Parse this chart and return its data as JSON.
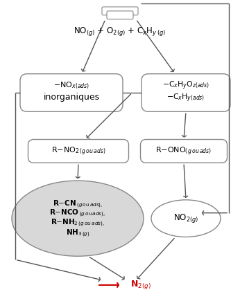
{
  "bg": "#ffffff",
  "ec": "#888888",
  "ac": "#555555",
  "rc": "#cc0000",
  "ef": "#d8d8d8",
  "bf": "#ffffff",
  "figw": 3.46,
  "figh": 4.22,
  "dpi": 100,
  "top_text": "NO$_{(g)}$ + O$_{2(g)}$ + C$_x$H$_{y\\,(g)}$",
  "b1_text1": "$-$NO$_{x(ads)}$",
  "b1_text2": "inorganiques",
  "b2_text1": "$-$C$_x$H$_y$O$_{z(ads)}$",
  "b2_text2": "$-$C$_x$H$_{y(ads)}$",
  "b3_text": "R$-$NO$_{2\\,(g\\,ou\\,ads)}$",
  "b4_text": "R$-$ONO$_{(g\\,ou\\,ads)}$",
  "e1_lines": [
    "R$-$CN$_{\\,(g\\,ou\\,ads),}$",
    "R$-$NCO$_{\\,(g\\,ou\\,ads),}$",
    "R$-$NH$_{2\\,(g\\,ou\\,ads),}$",
    "NH$_{3\\,(g)}$"
  ],
  "e2_text": "NO$_{2(g)}$",
  "n2_text": "N$_{2(g)}$"
}
